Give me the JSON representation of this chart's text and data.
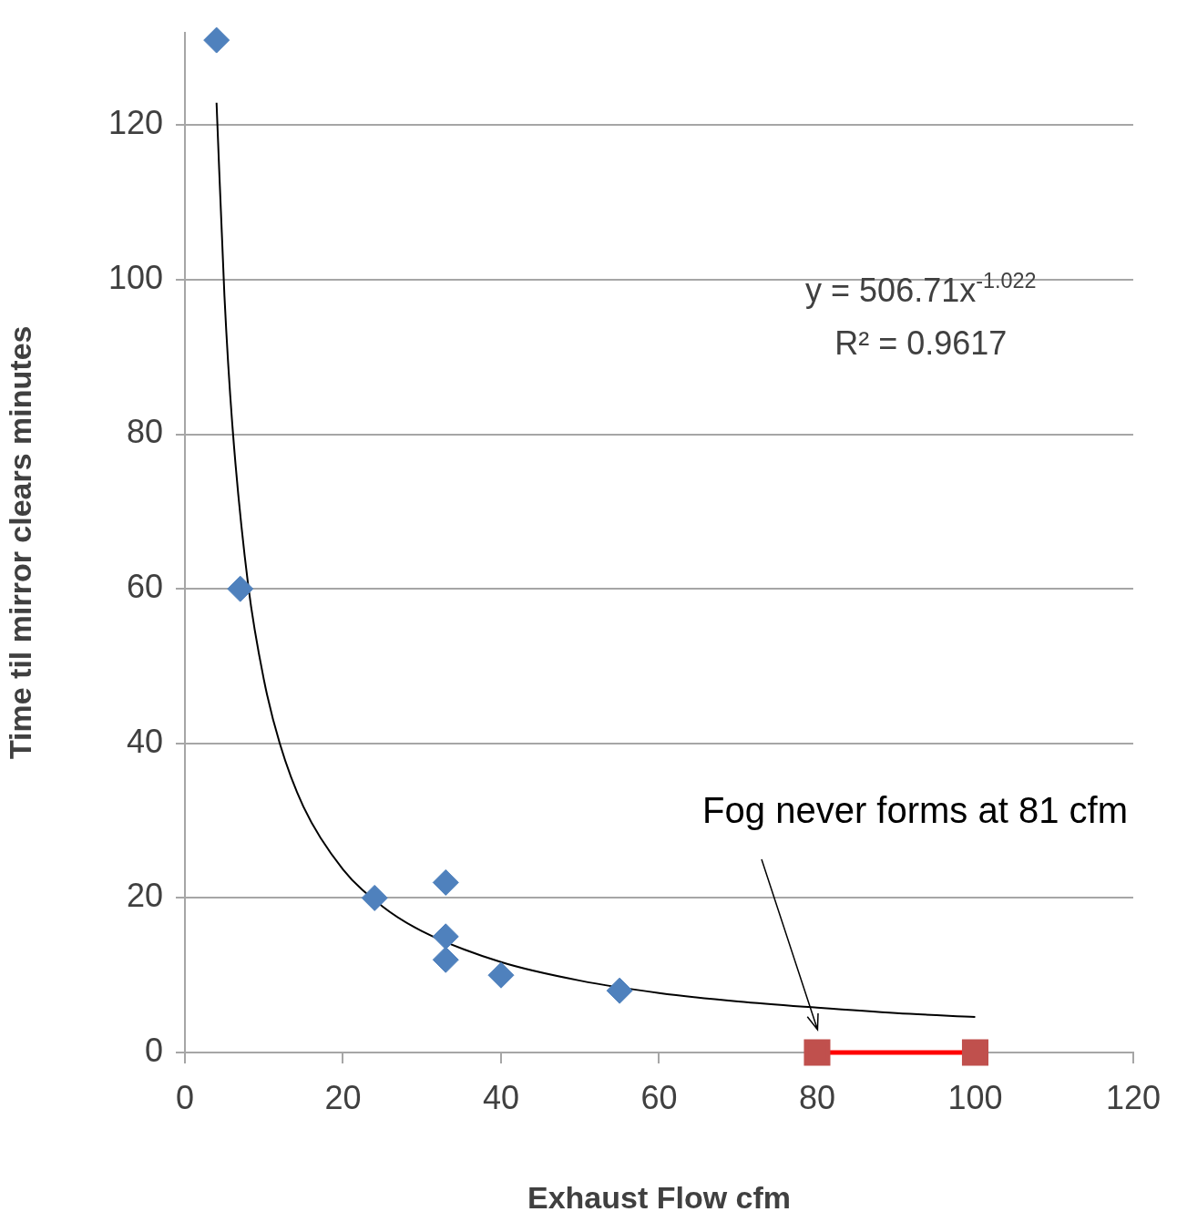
{
  "chart_data": {
    "type": "scatter",
    "xlabel": "Exhaust Flow cfm",
    "ylabel": "Time til mirror clears minutes",
    "xlim": [
      0,
      120
    ],
    "xticks": [
      0,
      20,
      40,
      60,
      80,
      100,
      120
    ],
    "ylim": [
      0,
      132
    ],
    "yticks": [
      0,
      20,
      40,
      60,
      80,
      100,
      120
    ],
    "grid": "y",
    "series": [
      {
        "type": "scatter",
        "color": "#4f81bd",
        "marker": "diamond",
        "x": [
          4,
          7,
          24,
          33,
          33,
          33,
          40,
          55
        ],
        "values": [
          131,
          60,
          20,
          22,
          15,
          12,
          10,
          8
        ]
      },
      {
        "type": "line",
        "color": "#ff0000",
        "colors": [
          "#c0504d",
          "#c0504d"
        ],
        "marker": "square",
        "x": [
          80,
          100
        ],
        "values": [
          0,
          0
        ]
      },
      {
        "type": "line",
        "color": "#000000",
        "marker": "none",
        "x": [
          4,
          5,
          6,
          8,
          10,
          12,
          15,
          20,
          25,
          30,
          40,
          50,
          60,
          70,
          80,
          90,
          100
        ],
        "values": [
          122.9,
          97.9,
          81.2,
          60.5,
          48.2,
          40,
          31.8,
          23.7,
          18.9,
          15.7,
          11.7,
          9.3,
          7.7,
          6.6,
          5.8,
          5.1,
          4.6
        ]
      }
    ],
    "annotations": [
      "y = 506.71x$^{-1.022}$",
      "R² = 0.9617",
      "Fog never forms at 81 cfm"
    ]
  }
}
